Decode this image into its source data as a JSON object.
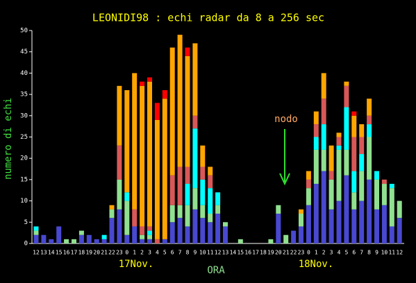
{
  "chart_data": {
    "type": "stacked-bar",
    "title": "LEONIDI98 : echi radar da 8 a 256 sec",
    "y_label": "numero di echi",
    "x_label": "ORA",
    "day_labels": [
      "17Nov.",
      "18Nov."
    ],
    "annotation": "nodo",
    "categories": [
      "12",
      "13",
      "14",
      "15",
      "16",
      "17",
      "18",
      "19",
      "20",
      "21",
      "22",
      "23",
      "0",
      "1",
      "2",
      "3",
      "4",
      "5",
      "6",
      "7",
      "8",
      "9",
      "10",
      "11",
      "12",
      "13",
      "14",
      "15",
      "16",
      "17",
      "18",
      "19",
      "20",
      "21",
      "22",
      "23",
      "0",
      "1",
      "2",
      "3",
      "4",
      "5",
      "6",
      "7",
      "8",
      "9",
      "10",
      "11",
      "12"
    ],
    "series": [
      {
        "color": "#4848d0",
        "values": [
          2,
          2,
          1,
          4,
          0,
          0,
          2,
          2,
          1,
          1,
          6,
          8,
          2,
          4,
          1,
          1,
          0,
          1,
          5,
          6,
          4,
          8,
          6,
          5,
          7,
          4,
          0,
          0,
          0,
          0,
          0,
          0,
          7,
          0,
          3,
          4,
          9,
          14,
          17,
          8,
          10,
          16,
          8,
          10,
          15,
          8,
          9,
          4,
          6
        ]
      },
      {
        "color": "#90e090",
        "values": [
          1,
          0,
          0,
          0,
          1,
          1,
          1,
          0,
          0,
          0,
          2,
          7,
          8,
          0,
          1,
          1,
          0,
          0,
          4,
          3,
          5,
          5,
          3,
          2,
          2,
          1,
          0,
          1,
          0,
          0,
          0,
          1,
          2,
          2,
          0,
          3,
          4,
          8,
          5,
          7,
          12,
          6,
          4,
          7,
          10,
          7,
          5,
          9,
          4
        ]
      },
      {
        "color": "#00ffff",
        "values": [
          1,
          0,
          0,
          0,
          0,
          0,
          0,
          0,
          0,
          1,
          0,
          0,
          2,
          0,
          0,
          1,
          0,
          0,
          0,
          0,
          5,
          14,
          6,
          6,
          3,
          0,
          0,
          0,
          0,
          0,
          0,
          0,
          0,
          0,
          0,
          0,
          0,
          3,
          6,
          0,
          1,
          10,
          5,
          4,
          3,
          2,
          0,
          1,
          0
        ]
      },
      {
        "color": "#d85858",
        "values": [
          0,
          0,
          0,
          0,
          0,
          0,
          0,
          0,
          0,
          0,
          0,
          8,
          0,
          4,
          2,
          1,
          1,
          0,
          7,
          9,
          4,
          3,
          3,
          3,
          0,
          0,
          0,
          0,
          0,
          0,
          0,
          0,
          0,
          0,
          0,
          0,
          2,
          3,
          6,
          2,
          2,
          5,
          8,
          4,
          2,
          0,
          1,
          0,
          0
        ]
      },
      {
        "color": "#ffa500",
        "values": [
          0,
          0,
          0,
          0,
          0,
          0,
          0,
          0,
          0,
          0,
          1,
          14,
          24,
          32,
          33,
          34,
          28,
          33,
          30,
          31,
          26,
          17,
          5,
          2,
          0,
          0,
          0,
          0,
          0,
          0,
          0,
          0,
          0,
          0,
          0,
          1,
          2,
          3,
          6,
          6,
          1,
          1,
          5,
          3,
          4,
          0,
          0,
          0,
          0
        ]
      },
      {
        "color": "#ff0000",
        "values": [
          0,
          0,
          0,
          0,
          0,
          0,
          0,
          0,
          0,
          0,
          0,
          0,
          0,
          0,
          1,
          1,
          4,
          2,
          0,
          0,
          2,
          0,
          0,
          0,
          0,
          0,
          0,
          0,
          0,
          0,
          0,
          0,
          0,
          0,
          0,
          0,
          0,
          0,
          0,
          0,
          0,
          0,
          1,
          0,
          0,
          0,
          0,
          0,
          0
        ]
      }
    ],
    "ylim": [
      0,
      50
    ],
    "yticks": [
      0,
      5,
      10,
      15,
      20,
      25,
      30,
      35,
      40,
      45,
      50
    ]
  }
}
